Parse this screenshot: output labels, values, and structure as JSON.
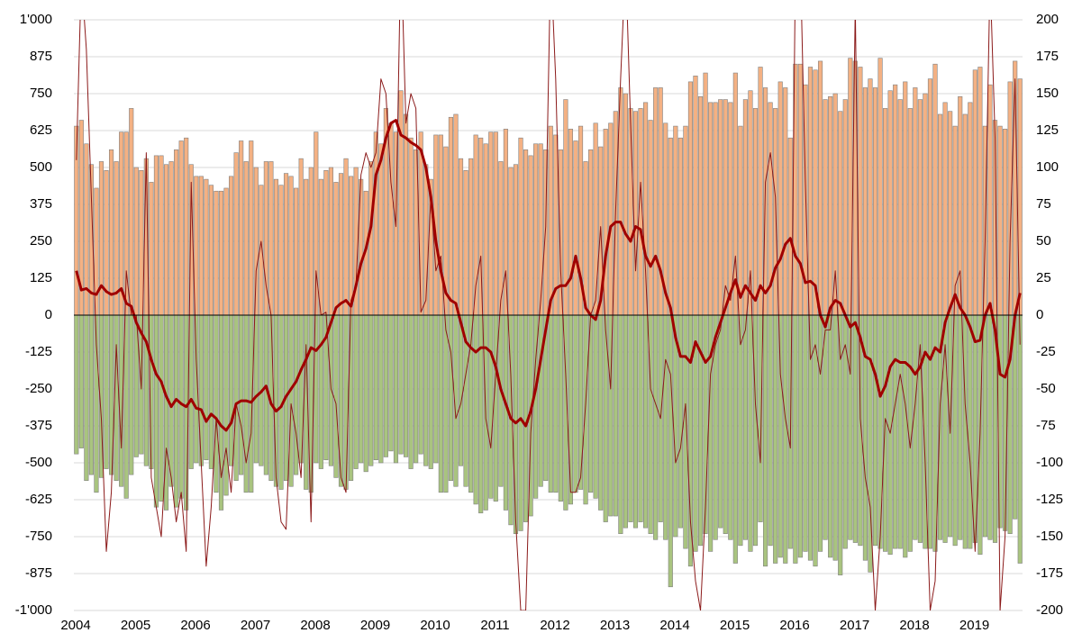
{
  "chart_data": {
    "type": "bar",
    "categories": [
      "2004",
      null,
      null,
      null,
      null,
      null,
      null,
      null,
      null,
      null,
      null,
      null,
      "2005",
      null,
      null,
      null,
      null,
      null,
      null,
      null,
      null,
      null,
      null,
      null,
      "2006",
      null,
      null,
      null,
      null,
      null,
      null,
      null,
      null,
      null,
      null,
      null,
      "2007",
      null,
      null,
      null,
      null,
      null,
      null,
      null,
      null,
      null,
      null,
      null,
      "2008",
      null,
      null,
      null,
      null,
      null,
      null,
      null,
      null,
      null,
      null,
      null,
      "2009",
      null,
      null,
      null,
      null,
      null,
      null,
      null,
      null,
      null,
      null,
      null,
      "2010",
      null,
      null,
      null,
      null,
      null,
      null,
      null,
      null,
      null,
      null,
      null,
      "2011",
      null,
      null,
      null,
      null,
      null,
      null,
      null,
      null,
      null,
      null,
      null,
      "2012",
      null,
      null,
      null,
      null,
      null,
      null,
      null,
      null,
      null,
      null,
      null,
      "2013",
      null,
      null,
      null,
      null,
      null,
      null,
      null,
      null,
      null,
      null,
      null,
      "2014",
      null,
      null,
      null,
      null,
      null,
      null,
      null,
      null,
      null,
      null,
      null,
      "2015",
      null,
      null,
      null,
      null,
      null,
      null,
      null,
      null,
      null,
      null,
      null,
      "2016",
      null,
      null,
      null,
      null,
      null,
      null,
      null,
      null,
      null,
      null,
      null,
      "2017",
      null,
      null,
      null,
      null,
      null,
      null,
      null,
      null,
      null,
      null,
      null,
      "2018",
      null,
      null,
      null,
      null,
      null,
      null,
      null,
      null,
      null,
      null,
      null,
      "2019",
      null,
      null,
      null,
      null,
      null,
      null,
      null,
      null,
      null
    ],
    "series": [
      {
        "type": "bar",
        "color": "#f4b183",
        "values": [
          640,
          660,
          580,
          510,
          430,
          520,
          490,
          560,
          520,
          620,
          620,
          700,
          500,
          490,
          530,
          450,
          540,
          540,
          510,
          520,
          560,
          590,
          600,
          510,
          470,
          470,
          460,
          440,
          420,
          420,
          430,
          470,
          550,
          590,
          520,
          590,
          500,
          440,
          520,
          520,
          460,
          440,
          480,
          470,
          430,
          530,
          460,
          500,
          620,
          460,
          490,
          500,
          450,
          480,
          530,
          470,
          500,
          460,
          420,
          520,
          620,
          580,
          700,
          650,
          620,
          760,
          680,
          600,
          560,
          620,
          510,
          460,
          610,
          610,
          570,
          670,
          680,
          530,
          490,
          530,
          610,
          600,
          580,
          620,
          620,
          520,
          630,
          500,
          510,
          600,
          560,
          540,
          580,
          580,
          560,
          640,
          610,
          560,
          730,
          630,
          590,
          640,
          520,
          560,
          650,
          570,
          630,
          650,
          690,
          770,
          750,
          700,
          690,
          700,
          720,
          660,
          770,
          770,
          650,
          600,
          640,
          600,
          640,
          790,
          810,
          740,
          820,
          720,
          720,
          730,
          730,
          720,
          820,
          640,
          730,
          760,
          700,
          840,
          770,
          720,
          700,
          790,
          770,
          600,
          850,
          850,
          780,
          840,
          830,
          860,
          730,
          740,
          750,
          690,
          730,
          870,
          860,
          840,
          770,
          800,
          770,
          870,
          700,
          760,
          780,
          730,
          790,
          700,
          770,
          730,
          750,
          800,
          850,
          680,
          720,
          690,
          640,
          740,
          680,
          720,
          830,
          840,
          640,
          780,
          660,
          640,
          630,
          790,
          860,
          800
        ]
      },
      {
        "type": "bar",
        "color": "#a9c47f",
        "values": [
          -470,
          -450,
          -560,
          -540,
          -600,
          -550,
          -520,
          -540,
          -560,
          -580,
          -620,
          -540,
          -480,
          -470,
          -510,
          -520,
          -650,
          -630,
          -660,
          -580,
          -650,
          -620,
          -660,
          -520,
          -500,
          -510,
          -490,
          -520,
          -600,
          -660,
          -610,
          -510,
          -560,
          -540,
          -600,
          -600,
          -500,
          -510,
          -540,
          -560,
          -580,
          -590,
          -560,
          -580,
          -540,
          -500,
          -590,
          -600,
          -500,
          -520,
          -490,
          -510,
          -550,
          -580,
          -590,
          -560,
          -520,
          -500,
          -530,
          -510,
          -490,
          -500,
          -480,
          -460,
          -500,
          -470,
          -480,
          -520,
          -500,
          -470,
          -510,
          -520,
          -500,
          -600,
          -600,
          -560,
          -580,
          -510,
          -580,
          -600,
          -640,
          -670,
          -660,
          -620,
          -630,
          -580,
          -660,
          -710,
          -740,
          -730,
          -700,
          -680,
          -620,
          -580,
          -560,
          -600,
          -600,
          -630,
          -660,
          -640,
          -600,
          -590,
          -640,
          -600,
          -620,
          -660,
          -700,
          -680,
          -680,
          -740,
          -720,
          -700,
          -720,
          -700,
          -720,
          -740,
          -760,
          -700,
          -760,
          -920,
          -750,
          -720,
          -790,
          -850,
          -800,
          -780,
          -740,
          -800,
          -760,
          -720,
          -740,
          -760,
          -840,
          -780,
          -760,
          -800,
          -780,
          -700,
          -850,
          -780,
          -840,
          -820,
          -840,
          -790,
          -840,
          -820,
          -800,
          -830,
          -850,
          -800,
          -760,
          -820,
          -830,
          -880,
          -790,
          -760,
          -770,
          -780,
          -830,
          -870,
          -780,
          -790,
          -800,
          -810,
          -790,
          -790,
          -820,
          -800,
          -760,
          -770,
          -790,
          -790,
          -800,
          -760,
          -770,
          -750,
          -780,
          -760,
          -790,
          -790,
          -770,
          -810,
          -750,
          -760,
          -770,
          -720,
          -730,
          -740,
          -690,
          -840
        ]
      },
      {
        "type": "line",
        "axis": "y2",
        "color": "#8b1a1a",
        "width": 1,
        "values": [
          105,
          230,
          180,
          80,
          -20,
          -70,
          -160,
          -120,
          -20,
          -90,
          30,
          0,
          0,
          -50,
          110,
          -110,
          -130,
          -150,
          -90,
          -110,
          -140,
          -120,
          -160,
          90,
          -30,
          -100,
          -170,
          -130,
          -70,
          -110,
          -90,
          -120,
          -60,
          -75,
          -100,
          -80,
          30,
          50,
          20,
          0,
          -110,
          -140,
          -145,
          -60,
          -80,
          -110,
          -20,
          -140,
          30,
          0,
          2,
          -50,
          -60,
          -110,
          -120,
          10,
          20,
          95,
          110,
          100,
          110,
          160,
          150,
          90,
          60,
          250,
          130,
          150,
          140,
          2,
          10,
          80,
          30,
          40,
          -10,
          -25,
          -70,
          -60,
          -40,
          -20,
          20,
          40,
          -70,
          -90,
          -40,
          10,
          30,
          -40,
          -140,
          -200,
          -200,
          -80,
          -30,
          10,
          60,
          240,
          160,
          30,
          -40,
          -120,
          -120,
          -110,
          -60,
          0,
          10,
          60,
          -10,
          -50,
          70,
          160,
          240,
          130,
          30,
          90,
          30,
          -50,
          -60,
          -70,
          -30,
          -40,
          -100,
          -90,
          -60,
          -140,
          -180,
          -200,
          -130,
          -40,
          -20,
          -10,
          20,
          10,
          40,
          -20,
          -10,
          30,
          -60,
          -100,
          90,
          110,
          80,
          -40,
          -70,
          -90,
          230,
          240,
          90,
          -30,
          -20,
          -40,
          -10,
          -10,
          30,
          -30,
          -20,
          -40,
          210,
          -70,
          -110,
          -130,
          -200,
          -150,
          -70,
          -80,
          -60,
          -40,
          -60,
          -90,
          -60,
          -20,
          -100,
          -200,
          -180,
          -60,
          -20,
          -80,
          20,
          30,
          -60,
          -100,
          -160,
          -80,
          50,
          230,
          120,
          -200,
          -150,
          50,
          160,
          -20
        ]
      },
      {
        "type": "line",
        "axis": "y2",
        "color": "#a00000",
        "width": 3,
        "values": [
          30,
          17,
          18,
          15,
          14,
          20,
          16,
          14,
          15,
          18,
          8,
          6,
          -5,
          -12,
          -18,
          -30,
          -40,
          -45,
          -55,
          -62,
          -57,
          -60,
          -62,
          -57,
          -63,
          -64,
          -72,
          -67,
          -70,
          -75,
          -78,
          -73,
          -60,
          -58,
          -58,
          -59,
          -55,
          -52,
          -48,
          -60,
          -65,
          -62,
          -55,
          -50,
          -45,
          -37,
          -30,
          -22,
          -24,
          -20,
          -15,
          -5,
          5,
          8,
          10,
          6,
          20,
          35,
          45,
          60,
          95,
          105,
          120,
          130,
          132,
          122,
          120,
          117,
          115,
          112,
          100,
          80,
          50,
          30,
          15,
          10,
          8,
          -5,
          -18,
          -22,
          -25,
          -22,
          -22,
          -25,
          -35,
          -50,
          -60,
          -70,
          -73,
          -70,
          -75,
          -65,
          -50,
          -30,
          -10,
          10,
          18,
          20,
          20,
          25,
          40,
          25,
          5,
          0,
          -3,
          10,
          40,
          60,
          63,
          63,
          55,
          50,
          60,
          58,
          40,
          33,
          40,
          30,
          15,
          5,
          -15,
          -28,
          -28,
          -32,
          -18,
          -25,
          -32,
          -28,
          -15,
          -5,
          5,
          15,
          24,
          12,
          20,
          15,
          10,
          20,
          15,
          20,
          32,
          38,
          48,
          52,
          40,
          35,
          22,
          23,
          20,
          0,
          -8,
          5,
          10,
          8,
          0,
          -8,
          -5,
          -15,
          -28,
          -30,
          -40,
          -55,
          -48,
          -35,
          -30,
          -32,
          -32,
          -35,
          -40,
          -35,
          -25,
          -30,
          -22,
          -25,
          -5,
          5,
          14,
          5,
          0,
          -8,
          -18,
          -17,
          0,
          8,
          -10,
          -40,
          -42,
          -30,
          0,
          15
        ]
      }
    ],
    "ylim": [
      -1000,
      1000
    ],
    "yticks": [
      {
        "value": -1000,
        "label": "-1'000"
      },
      -875,
      -750,
      -625,
      -500,
      -375,
      -250,
      -125,
      0,
      125,
      250,
      375,
      500,
      625,
      750,
      875,
      {
        "value": 1000,
        "label": "1'000"
      }
    ],
    "y2lim": [
      -200,
      200
    ],
    "y2ticks": [
      -200,
      -175,
      -150,
      -125,
      -100,
      -75,
      -50,
      -25,
      0,
      25,
      50,
      75,
      100,
      125,
      150,
      175,
      200
    ],
    "grid": true,
    "negative_tick_color": "#e00000"
  }
}
